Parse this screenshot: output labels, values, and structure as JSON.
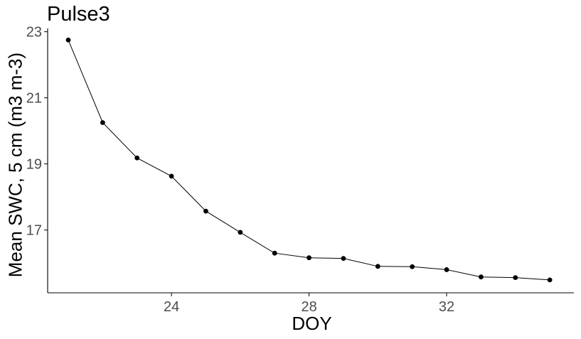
{
  "chart_data": {
    "type": "line",
    "title": "Pulse3",
    "xlabel": "DOY",
    "ylabel": "Mean SWC, 5 cm (m3 m-3)",
    "x_ticks": [
      "24",
      "28",
      "32"
    ],
    "y_ticks": [
      "17",
      "19",
      "21",
      "23"
    ],
    "xlim": [
      20.4,
      35.7
    ],
    "ylim": [
      15.1,
      23.1
    ],
    "grid": false,
    "series": [
      {
        "x": [
          21,
          22,
          23,
          24,
          25,
          26,
          27,
          28,
          29,
          30,
          31,
          32,
          33,
          34,
          35
        ],
        "y": [
          22.75,
          20.25,
          19.18,
          18.63,
          17.57,
          16.93,
          16.3,
          16.16,
          16.14,
          15.9,
          15.89,
          15.8,
          15.58,
          15.56,
          15.49
        ]
      }
    ],
    "colors": {
      "line": "#000000",
      "point": "#000000",
      "axis": "#000000",
      "tick_label": "#4d4d4d"
    }
  }
}
